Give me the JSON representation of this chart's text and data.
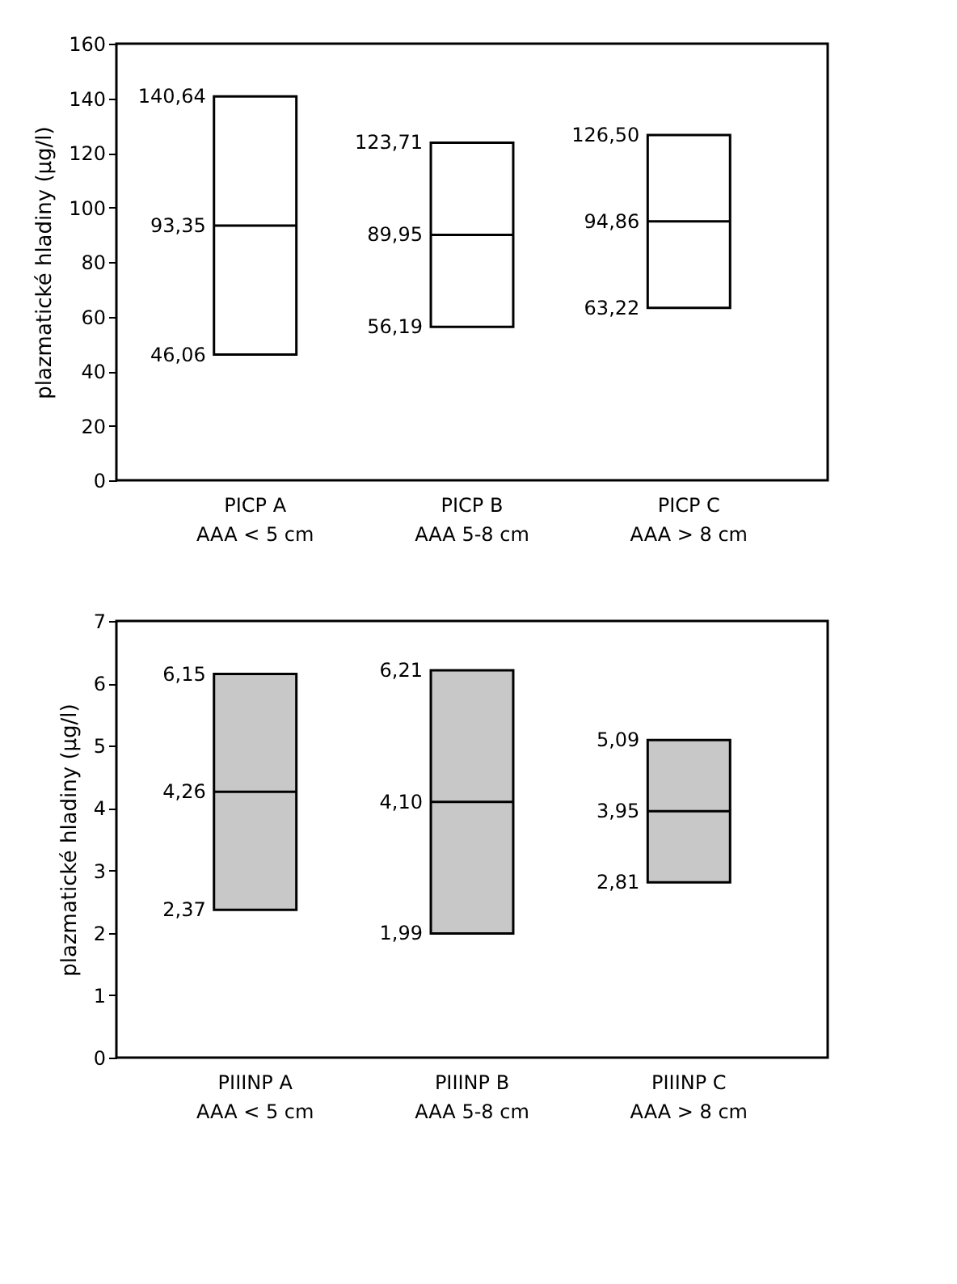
{
  "chart_data": [
    {
      "type": "box",
      "ylabel": "plazmatické hladiny (µg/l)",
      "categories": [
        "PICP A\nAAA < 5 cm",
        "PICP B\nAAA  5-8 cm",
        "PICP C\nAAA > 8 cm"
      ],
      "color": "#ffffff",
      "ylim": [
        0,
        160
      ],
      "yticks": [
        0,
        20,
        40,
        60,
        80,
        100,
        120,
        140,
        160
      ],
      "grid": false,
      "value_labels": [
        [
          "46,06",
          "93,35",
          "140,64"
        ],
        [
          "56,19",
          "89,95",
          "123,71"
        ],
        [
          "63,22",
          "94,86",
          "126,50"
        ]
      ],
      "boxes": [
        {
          "low": 46.06,
          "q1": 46.06,
          "median": 93.35,
          "q3": 140.64,
          "high": 140.64
        },
        {
          "low": 56.19,
          "q1": 56.19,
          "median": 89.95,
          "q3": 123.71,
          "high": 123.71
        },
        {
          "low": 63.22,
          "q1": 63.22,
          "median": 94.86,
          "q3": 126.5,
          "high": 126.5
        }
      ]
    },
    {
      "type": "box",
      "ylabel": "plazmatické hladiny (µg/l)",
      "categories": [
        "PIIINP A\nAAA < 5 cm",
        "PIIINP B\nAAA  5-8 cm",
        "PIIINP C\nAAA > 8 cm"
      ],
      "color": "#c8c8c8",
      "ylim": [
        0,
        7
      ],
      "yticks": [
        0,
        1,
        2,
        3,
        4,
        5,
        6,
        7
      ],
      "grid": false,
      "value_labels": [
        [
          "2,37",
          "4,26",
          "6,15"
        ],
        [
          "1,99",
          "4,10",
          "6,21"
        ],
        [
          "2,81",
          "3,95",
          "5,09"
        ]
      ],
      "boxes": [
        {
          "low": 2.37,
          "q1": 2.37,
          "median": 4.26,
          "q3": 6.15,
          "high": 6.15
        },
        {
          "low": 1.99,
          "q1": 1.99,
          "median": 4.1,
          "q3": 6.21,
          "high": 6.21
        },
        {
          "low": 2.81,
          "q1": 2.81,
          "median": 3.95,
          "q3": 5.09,
          "high": 5.09
        }
      ]
    }
  ]
}
